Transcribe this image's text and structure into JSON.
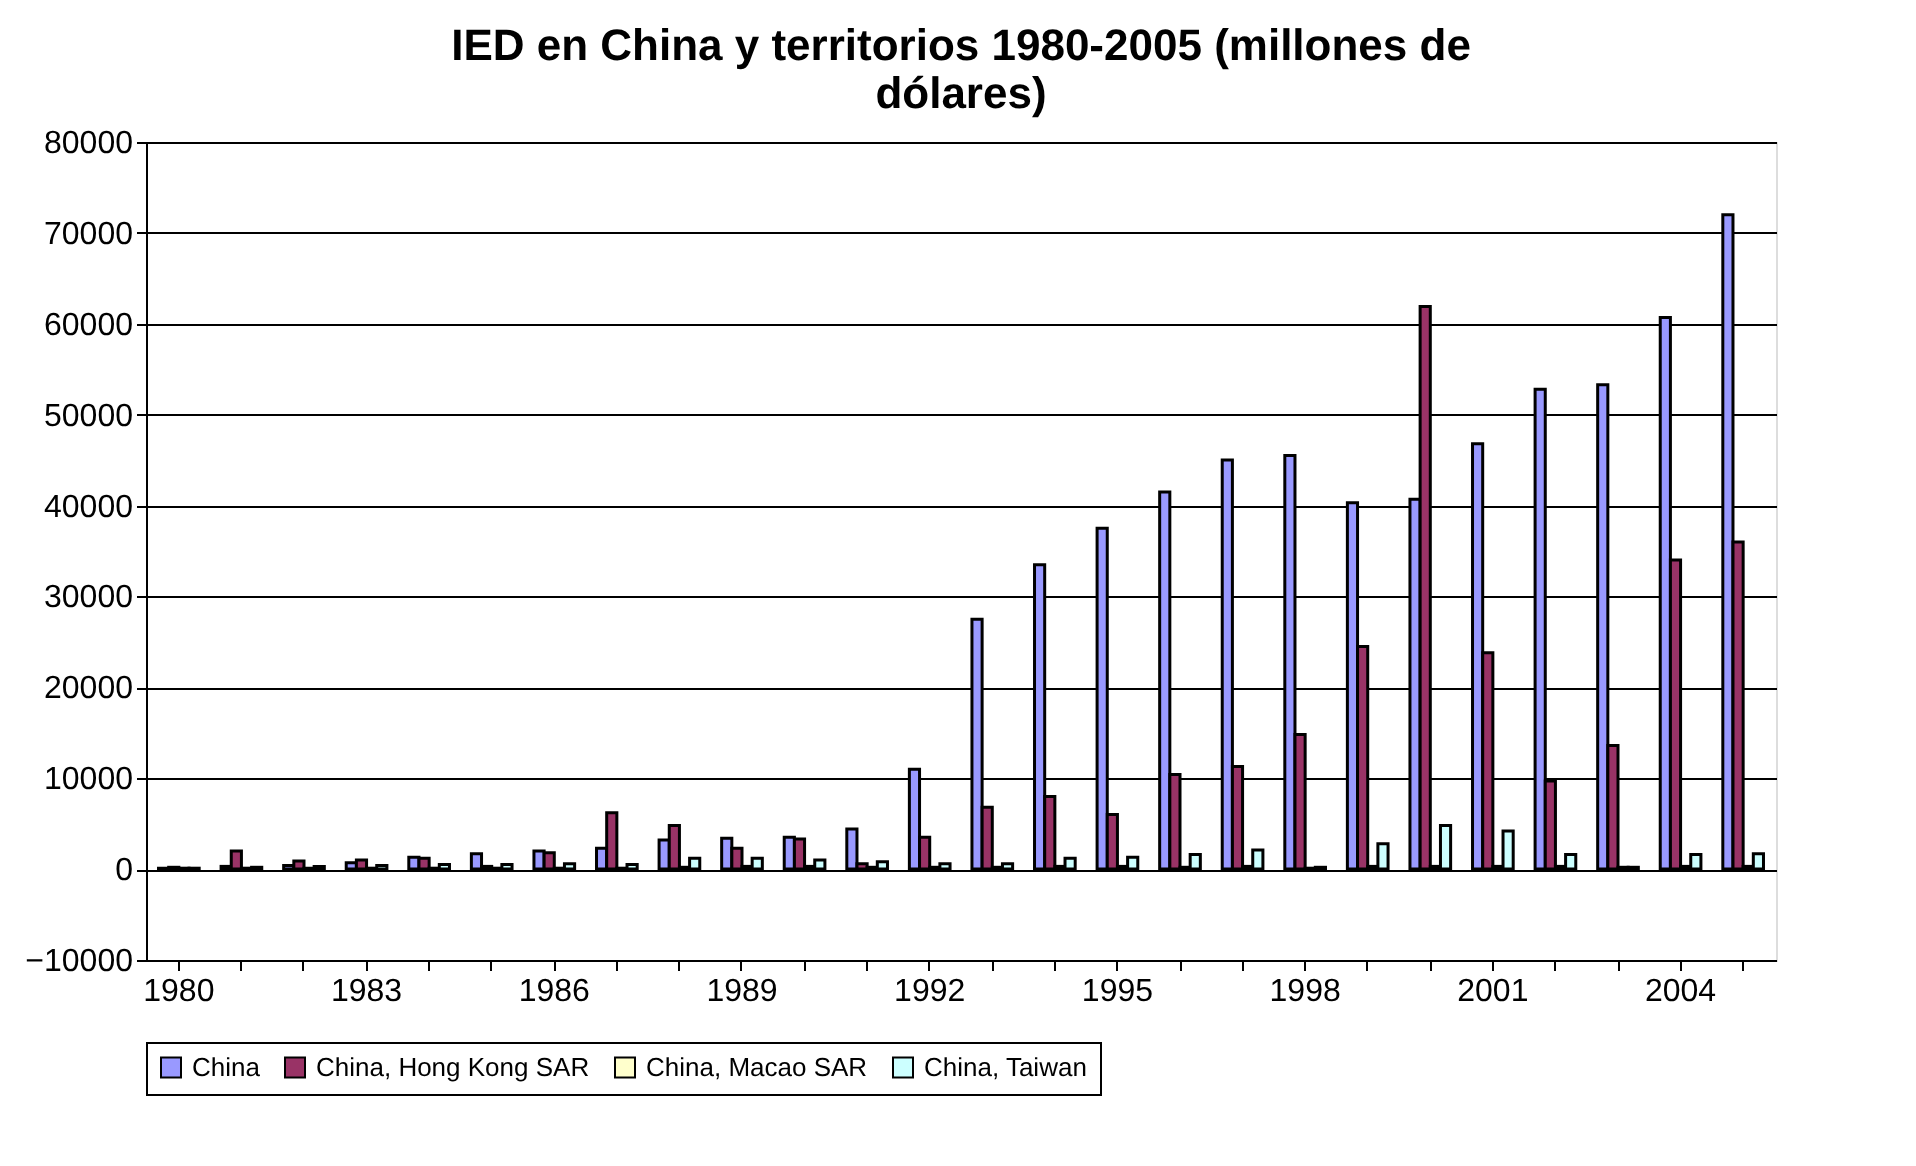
{
  "chart_data": {
    "type": "bar",
    "title": "IED en China y territorios 1980-2005 (millones de dólares)",
    "categories": [
      "1980",
      null,
      null,
      "1983",
      null,
      null,
      "1986",
      null,
      null,
      "1989",
      null,
      null,
      "1992",
      null,
      null,
      "1995",
      null,
      null,
      "1998",
      null,
      null,
      "2001",
      null,
      null,
      "2004",
      null
    ],
    "series": [
      {
        "name": "China",
        "color": "#9999ff",
        "values": [
          100,
          300,
          400,
          700,
          1300,
          1700,
          2000,
          2300,
          3200,
          3400,
          3500,
          4400,
          11000,
          27500,
          33500,
          37500,
          41500,
          45000,
          45500,
          40300,
          40700,
          46800,
          52800,
          53300,
          60700,
          72000
        ]
      },
      {
        "name": "China, Hong Kong SAR",
        "color": "#993366",
        "values": [
          200,
          2000,
          900,
          1000,
          1200,
          300,
          1800,
          6200,
          4800,
          2300,
          3300,
          600,
          3500,
          6800,
          8000,
          6000,
          10400,
          11300,
          14800,
          24500,
          61900,
          23800,
          9700,
          13600,
          34000,
          36000
        ]
      },
      {
        "name": "China, Macao SAR",
        "color": "#ffffcc",
        "values": [
          100,
          100,
          100,
          100,
          100,
          100,
          100,
          100,
          200,
          300,
          300,
          200,
          200,
          200,
          300,
          300,
          200,
          300,
          100,
          300,
          300,
          300,
          300,
          200,
          300,
          300
        ]
      },
      {
        "name": "China, Taiwan",
        "color": "#ccffff",
        "values": [
          100,
          200,
          300,
          400,
          500,
          500,
          600,
          500,
          1200,
          1200,
          1000,
          800,
          600,
          600,
          1200,
          1300,
          1600,
          2100,
          200,
          2800,
          4800,
          4200,
          1600,
          200,
          1600,
          1700
        ]
      }
    ],
    "ylim": [
      -10000,
      80000
    ],
    "yticks": [
      -10000,
      0,
      10000,
      20000,
      30000,
      40000,
      50000,
      60000,
      70000,
      80000
    ],
    "grid": "y",
    "legend": "bottom"
  }
}
